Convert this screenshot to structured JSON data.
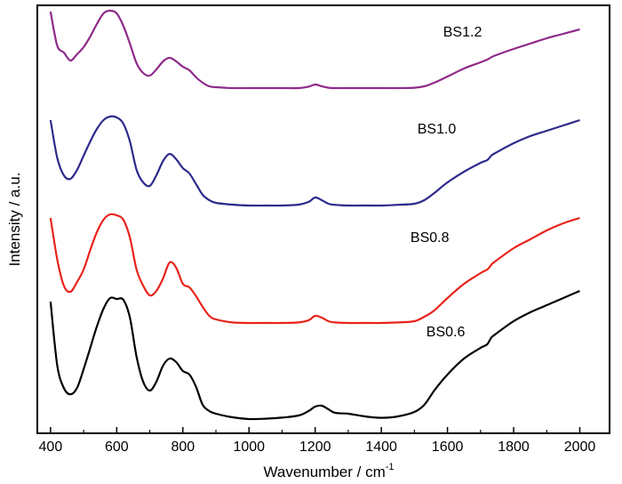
{
  "chart_data": {
    "type": "line",
    "xlabel": "Wavenumber / cm",
    "xlabel_superscript": "-1",
    "ylabel": "Intensity / a.u.",
    "xlim": [
      360,
      2090
    ],
    "x_ticks": [
      400,
      600,
      800,
      1000,
      1200,
      1400,
      1600,
      1800,
      2000
    ],
    "grid": false,
    "legend": "none",
    "series": [
      {
        "name": "BS0.6",
        "color": "#000000",
        "x": [
          400,
          420,
          440,
          460,
          480,
          500,
          520,
          540,
          560,
          580,
          600,
          620,
          640,
          660,
          680,
          700,
          720,
          740,
          760,
          780,
          800,
          820,
          840,
          860,
          880,
          900,
          950,
          1000,
          1050,
          1100,
          1150,
          1180,
          1200,
          1220,
          1240,
          1260,
          1300,
          1350,
          1400,
          1450,
          1500,
          1530,
          1560,
          1600,
          1650,
          1700,
          1720,
          1730,
          1740,
          1800,
          1850,
          1900,
          1950,
          2000
        ],
        "y": [
          66.0,
          30.5,
          17.5,
          13.9,
          17.5,
          28.0,
          40.0,
          52.0,
          62.0,
          68.0,
          67.5,
          67.0,
          57.0,
          35.0,
          21.0,
          16.0,
          21.0,
          30.0,
          34.0,
          32.0,
          27.0,
          25.0,
          18.0,
          8.0,
          4.5,
          3.0,
          1.0,
          0.0,
          0.2,
          0.8,
          2.0,
          4.5,
          7.0,
          7.5,
          5.5,
          3.5,
          3.0,
          1.5,
          0.7,
          1.5,
          4.0,
          8.0,
          16.0,
          25.0,
          34.0,
          40.0,
          42.0,
          45.0,
          47.0,
          55.0,
          60.0,
          64.0,
          68.0,
          72.0
        ]
      },
      {
        "name": "BS0.8",
        "color": "#e8231c",
        "x": [
          400,
          420,
          440,
          460,
          480,
          500,
          520,
          540,
          560,
          580,
          600,
          620,
          640,
          660,
          680,
          700,
          720,
          740,
          760,
          780,
          800,
          820,
          840,
          860,
          880,
          900,
          950,
          1000,
          1050,
          1100,
          1150,
          1180,
          1200,
          1220,
          1240,
          1260,
          1300,
          1350,
          1400,
          1450,
          1500,
          1530,
          1560,
          1600,
          1650,
          1700,
          1720,
          1730,
          1740,
          1800,
          1850,
          1900,
          1950,
          2000
        ],
        "y": [
          113.0,
          90.0,
          75.0,
          71.5,
          77.0,
          84.0,
          95.0,
          105.0,
          112.0,
          115.0,
          114.5,
          112.0,
          102.0,
          84.0,
          75.0,
          69.5,
          72.0,
          79.0,
          88.0,
          85.0,
          76.0,
          74.0,
          69.0,
          63.0,
          58.0,
          56.0,
          54.3,
          54.0,
          54.0,
          54.0,
          54.3,
          55.5,
          58.0,
          57.0,
          55.0,
          54.3,
          54.0,
          54.0,
          54.0,
          54.3,
          55.0,
          57.5,
          61.0,
          68.0,
          76.0,
          82.0,
          84.0,
          86.0,
          88.0,
          96.0,
          101.0,
          106.0,
          110.0,
          113.0
        ]
      },
      {
        "name": "BS1.0",
        "color": "#2e2a8c",
        "x": [
          400,
          420,
          440,
          460,
          480,
          500,
          520,
          540,
          560,
          580,
          600,
          620,
          640,
          660,
          680,
          700,
          720,
          740,
          760,
          780,
          800,
          820,
          840,
          860,
          880,
          900,
          950,
          1000,
          1050,
          1100,
          1150,
          1180,
          1200,
          1220,
          1240,
          1260,
          1300,
          1350,
          1400,
          1450,
          1500,
          1530,
          1560,
          1600,
          1650,
          1700,
          1720,
          1730,
          1740,
          1800,
          1850,
          1900,
          1950,
          2000
        ],
        "y": [
          168.0,
          147.0,
          137.0,
          135.0,
          140.0,
          148.0,
          156.0,
          163.0,
          168.0,
          170.0,
          169.5,
          166.0,
          156.0,
          140.0,
          133.0,
          131.0,
          137.0,
          145.0,
          149.0,
          146.0,
          141.0,
          138.0,
          132.0,
          126.0,
          123.0,
          121.5,
          120.5,
          120.0,
          120.0,
          120.0,
          120.5,
          122.0,
          124.5,
          123.0,
          121.0,
          120.4,
          120.0,
          120.0,
          120.0,
          120.4,
          121.0,
          123.0,
          127.0,
          133.0,
          139.0,
          144.0,
          145.5,
          147.5,
          149.0,
          155.0,
          159.0,
          162.0,
          165.0,
          168.0
        ]
      },
      {
        "name": "BS1.2",
        "color": "#8f2a8a",
        "x": [
          400,
          420,
          440,
          460,
          480,
          500,
          520,
          540,
          560,
          580,
          600,
          620,
          640,
          660,
          680,
          700,
          720,
          740,
          760,
          780,
          800,
          820,
          840,
          860,
          880,
          900,
          950,
          1000,
          1050,
          1100,
          1150,
          1180,
          1200,
          1220,
          1240,
          1260,
          1300,
          1350,
          1400,
          1450,
          1500,
          1530,
          1560,
          1600,
          1650,
          1700,
          1720,
          1730,
          1740,
          1800,
          1850,
          1900,
          1950,
          2000
        ],
        "y": [
          229.0,
          210.0,
          206.0,
          201.5,
          205.0,
          209.0,
          215.0,
          222.0,
          228.0,
          229.5,
          228.0,
          221.0,
          211.0,
          200.0,
          194.5,
          193.0,
          196.5,
          201.0,
          203.0,
          201.0,
          198.0,
          196.0,
          192.0,
          189.0,
          187.0,
          186.5,
          186.0,
          186.0,
          186.0,
          186.0,
          186.0,
          186.8,
          188.0,
          187.0,
          186.2,
          186.0,
          186.0,
          186.0,
          186.0,
          186.0,
          186.2,
          187.0,
          189.0,
          192.5,
          197.0,
          200.5,
          202.0,
          203.0,
          204.0,
          208.0,
          211.0,
          214.0,
          216.5,
          219.0
        ]
      }
    ]
  }
}
